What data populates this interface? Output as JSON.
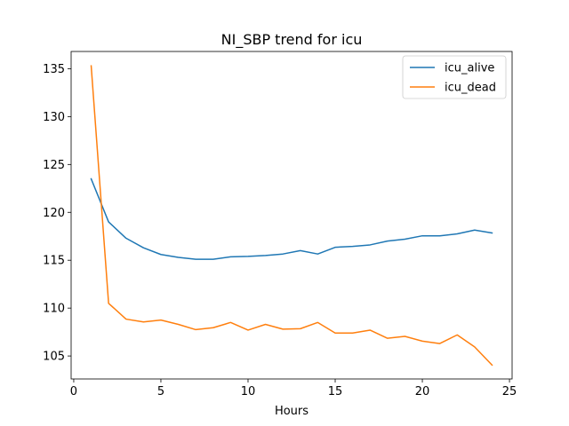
{
  "chart_data": {
    "type": "line",
    "title": "NI_SBP trend for icu",
    "xlabel": "Hours",
    "ylabel": "",
    "xlim": [
      -0.15,
      25.15
    ],
    "ylim": [
      102.6,
      136.8
    ],
    "xticks": [
      0,
      5,
      10,
      15,
      20,
      25
    ],
    "yticks": [
      105,
      110,
      115,
      120,
      125,
      130,
      135
    ],
    "grid": false,
    "legend_position": "top-right",
    "x": [
      1,
      2,
      3,
      4,
      5,
      6,
      7,
      8,
      9,
      10,
      11,
      12,
      13,
      14,
      15,
      16,
      17,
      18,
      19,
      20,
      21,
      22,
      23,
      24
    ],
    "series": [
      {
        "name": "icu_alive",
        "color": "#1f77b4",
        "values": [
          123.5,
          119.0,
          117.3,
          116.3,
          115.6,
          115.3,
          115.1,
          115.1,
          115.35,
          115.4,
          115.5,
          115.65,
          116.0,
          115.65,
          116.35,
          116.45,
          116.6,
          117.0,
          117.2,
          117.55,
          117.55,
          117.75,
          118.15,
          117.85
        ]
      },
      {
        "name": "icu_dead",
        "color": "#ff7f0e",
        "values": [
          135.3,
          110.5,
          108.85,
          108.55,
          108.75,
          108.3,
          107.75,
          107.95,
          108.5,
          107.7,
          108.3,
          107.8,
          107.85,
          108.5,
          107.4,
          107.4,
          107.7,
          106.85,
          107.05,
          106.55,
          106.3,
          107.2,
          105.95,
          104.05
        ]
      }
    ]
  }
}
